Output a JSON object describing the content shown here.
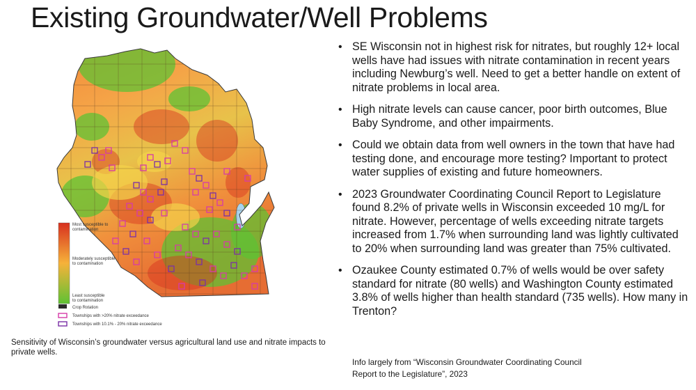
{
  "slide": {
    "title": "Existing Groundwater/Well Problems",
    "caption": "Sensitivity of Wisconsin’s groundwater versus agricultural land use and nitrate impacts to private wells.",
    "bullets": [
      "SE Wisconsin not in highest risk for nitrates, but roughly 12+ local wells have had issues with nitrate contamination in recent years including Newburg’s well. Need to get a better handle on extent of nitrate problems in local area.",
      "High nitrate levels can cause cancer, poor birth outcomes, Blue Baby Syndrome, and other impairments.",
      "Could we obtain data from well owners in the town that have had testing done, and encourage more testing? Important to protect water supplies of existing and future homeowners.",
      "2023 Groundwater Coordinating Council Report to Legislature found 8.2% of private wells in Wisconsin exceeded 10 mg/L for nitrate. However, percentage of wells exceeding nitrate targets increased from 1.7% when surrounding land was lightly cultivated to 20% when surrounding land was greater than 75% cultivated.",
      "Ozaukee County estimated 0.7% of wells would be over safety standard for nitrate (80 wells) and Washington County estimated 3.8% of wells higher than health standard (735 wells). How many in Trenton?"
    ],
    "bullet_glyph": "•",
    "source_line1": "Info largely from “Wisconsin Groundwater Coordinating Council",
    "source_line2": "Report to the Legislature”, 2023"
  },
  "map": {
    "legend": {
      "most": [
        "Most susceptible to",
        "contamination"
      ],
      "moderate": [
        "Moderately susceptible",
        "to contamination"
      ],
      "least": [
        "Least susceptible",
        "to contamination"
      ],
      "crop": "Crop Rotation",
      "high": "Townships with >20% nitrate exceedance",
      "mid": "Townships with 10.1% - 20% nitrate exceedance"
    },
    "colors": {
      "most": "#d7301f",
      "moderate": "#f6b23a",
      "least": "#5fc234",
      "crop": "#2b2b2b",
      "high": "#d63aa8",
      "mid": "#7b2fa6",
      "lake": "#a8d4ee"
    }
  }
}
